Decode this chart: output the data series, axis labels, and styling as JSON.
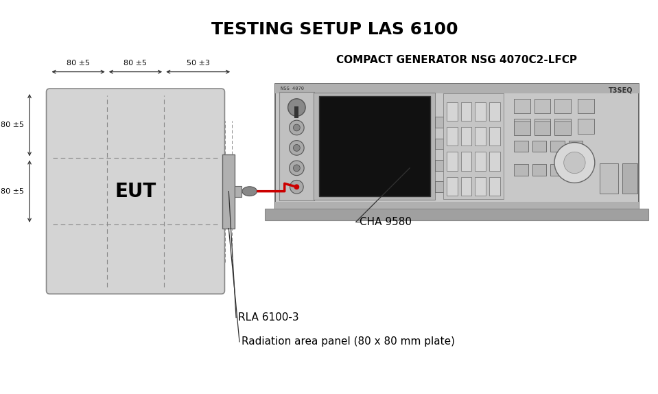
{
  "title": "TESTING SETUP LAS 6100",
  "subtitle": "COMPACT GENERATOR NSG 4070C2-LFCP",
  "bg_color": "#ffffff",
  "title_fontsize": 18,
  "subtitle_fontsize": 11,
  "eut_label": "EUT",
  "generator_color": "#c8c8c8",
  "eut_color": "#d4d4d4",
  "screen_color": "#111111",
  "cable_color": "#cc0000",
  "text_color": "#000000",
  "label_cha": "CHA 9580",
  "label_rla": "RLA 6100-3",
  "label_rad": "Radiation area panel (80 x 80 mm plate)",
  "label_nsg": "NSG 4070",
  "label_teseq": "T3SEQ"
}
